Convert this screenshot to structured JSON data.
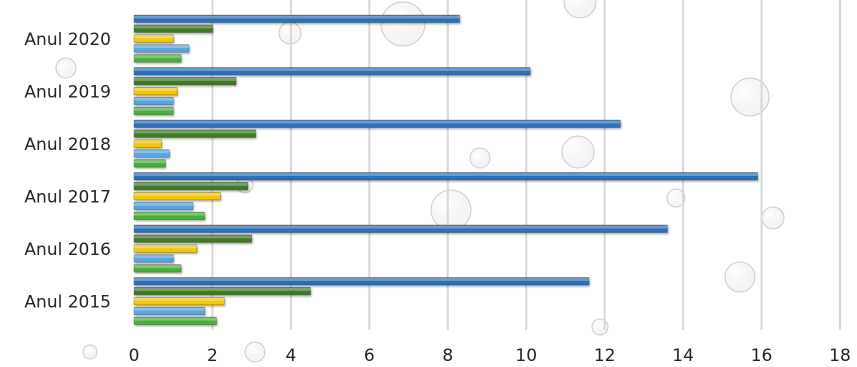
{
  "chart_data": {
    "type": "bar",
    "orientation": "horizontal",
    "title": "",
    "xlabel": "",
    "ylabel": "",
    "xlim": [
      0,
      18
    ],
    "xticks": [
      0,
      2,
      4,
      6,
      8,
      10,
      12,
      14,
      16,
      18
    ],
    "grid": true,
    "legend": "none",
    "categories": [
      "Anul 2020",
      "Anul 2019",
      "Anul 2018",
      "Anul 2017",
      "Anul 2016",
      "Anul 2015"
    ],
    "series": [
      {
        "color": "#2e6fb8",
        "values": [
          8.3,
          10.1,
          12.4,
          15.9,
          13.6,
          11.6
        ]
      },
      {
        "color": "#3f7a28",
        "values": [
          2.0,
          2.6,
          3.1,
          2.9,
          3.0,
          4.5
        ]
      },
      {
        "color": "#f2c811",
        "values": [
          1.0,
          1.1,
          0.7,
          2.2,
          1.6,
          2.3
        ]
      },
      {
        "color": "#56a5e0",
        "values": [
          1.4,
          1.0,
          0.9,
          1.5,
          1.0,
          1.8
        ]
      },
      {
        "color": "#4caf3d",
        "values": [
          1.2,
          1.0,
          0.8,
          1.8,
          1.2,
          2.1
        ]
      }
    ]
  }
}
